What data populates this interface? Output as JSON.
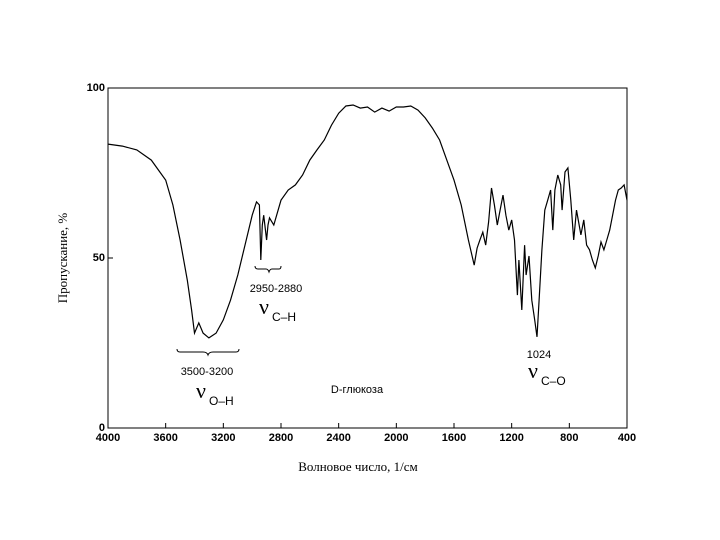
{
  "chart_data": {
    "type": "line",
    "x_label": "Волновое число, 1/см",
    "y_label": "Пропускание, %",
    "sample_label": "D-глюкоза",
    "bands": [
      {
        "range": "3500-3200",
        "symbol": "ν",
        "subscript": "O–H"
      },
      {
        "range": "2950-2880",
        "symbol": "ν",
        "subscript": "C–H"
      },
      {
        "range": "1024",
        "symbol": "ν",
        "subscript": "C–O"
      }
    ],
    "xlim": [
      4000,
      400
    ],
    "ylim": [
      0,
      100
    ],
    "xticks": [
      4000,
      3600,
      3200,
      2800,
      2400,
      2000,
      1600,
      1200,
      800,
      400
    ],
    "yticks": [
      0,
      50,
      100
    ],
    "series": [
      {
        "color": "#000000",
        "x": [
          4000,
          3900,
          3800,
          3700,
          3600,
          3550,
          3500,
          3450,
          3420,
          3400,
          3370,
          3340,
          3300,
          3250,
          3200,
          3150,
          3100,
          3050,
          3000,
          2970,
          2950,
          2940,
          2930,
          2920,
          2900,
          2890,
          2880,
          2850,
          2800,
          2750,
          2700,
          2650,
          2600,
          2550,
          2500,
          2450,
          2400,
          2350,
          2300,
          2250,
          2200,
          2150,
          2100,
          2050,
          2000,
          1950,
          1900,
          1850,
          1800,
          1750,
          1700,
          1650,
          1600,
          1550,
          1500,
          1460,
          1440,
          1420,
          1400,
          1380,
          1360,
          1340,
          1320,
          1300,
          1280,
          1260,
          1240,
          1220,
          1200,
          1180,
          1160,
          1150,
          1130,
          1110,
          1100,
          1080,
          1060,
          1040,
          1024,
          1010,
          990,
          970,
          950,
          930,
          915,
          900,
          880,
          860,
          850,
          830,
          810,
          790,
          770,
          750,
          720,
          700,
          680,
          660,
          640,
          620,
          600,
          580,
          560,
          540,
          520,
          500,
          480,
          460,
          440,
          420,
          400
        ],
        "values": [
          83.5,
          82.9,
          81.8,
          78.8,
          72.9,
          65.6,
          55.3,
          43.5,
          34.7,
          27.9,
          30.9,
          27.9,
          26.5,
          27.9,
          31.8,
          37.6,
          45,
          53.8,
          62.6,
          66.5,
          65.6,
          49.4,
          59.7,
          62.6,
          55.3,
          59.7,
          61.8,
          59.7,
          67,
          70,
          71.5,
          74.4,
          78.8,
          81.8,
          84.7,
          89.1,
          92.6,
          94.7,
          95,
          94.1,
          94.4,
          92.9,
          94.1,
          93.2,
          94.4,
          94.4,
          94.7,
          93.5,
          91.2,
          88.2,
          84.7,
          78.8,
          72.9,
          65.6,
          55.3,
          47.9,
          52.9,
          55.3,
          57.6,
          53.8,
          60.6,
          70.6,
          65.6,
          59.7,
          64.1,
          68.5,
          62.6,
          58.2,
          61.2,
          55.3,
          39.1,
          49.4,
          34.7,
          53.8,
          45,
          50.6,
          37.6,
          31.8,
          26.8,
          37.6,
          52.4,
          64.1,
          67,
          70,
          58.2,
          70,
          74.4,
          71.5,
          64.1,
          75.3,
          76.5,
          67,
          55.3,
          64.1,
          56.8,
          61.2,
          53.8,
          52.4,
          49.4,
          47.1,
          50.6,
          54.7,
          52.4,
          55.3,
          58.2,
          62.6,
          67,
          70,
          70.6,
          71.5,
          67
        ]
      }
    ]
  }
}
